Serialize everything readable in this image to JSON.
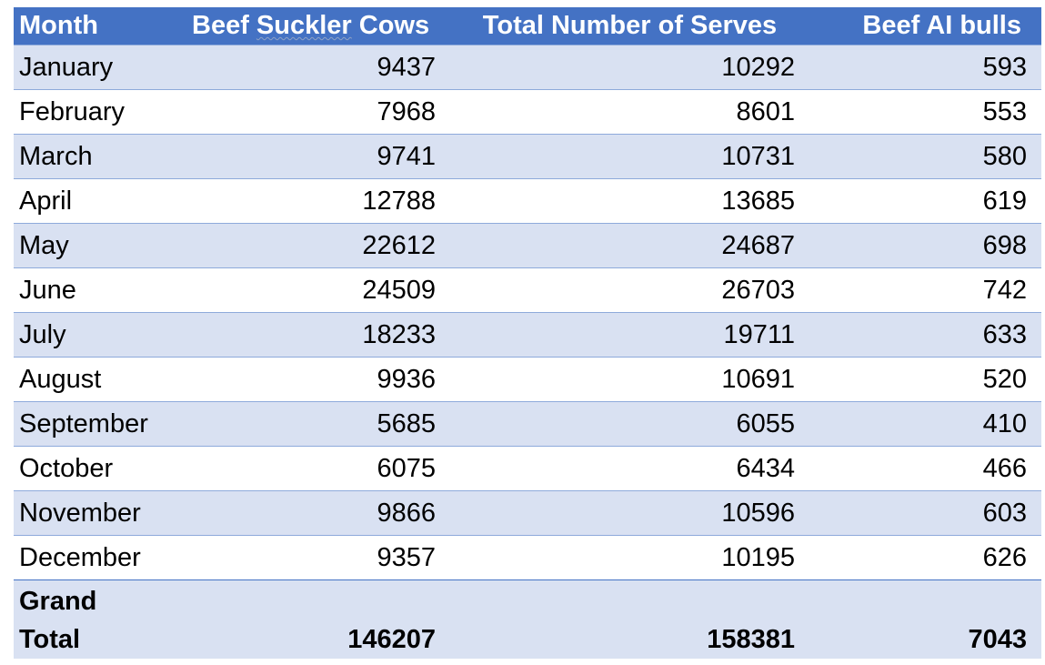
{
  "table": {
    "headers": {
      "month": "Month",
      "cows_word1": "Beef",
      "cows_word2": "Suckler",
      "cows_word3": "Cows",
      "serves": "Total Number of Serves",
      "bulls": "Beef AI bulls"
    },
    "rows": [
      {
        "month": "January",
        "cows": "9437",
        "serves": "10292",
        "bulls": "593"
      },
      {
        "month": "February",
        "cows": "7968",
        "serves": "8601",
        "bulls": "553"
      },
      {
        "month": "March",
        "cows": "9741",
        "serves": "10731",
        "bulls": "580"
      },
      {
        "month": "April",
        "cows": "12788",
        "serves": "13685",
        "bulls": "619"
      },
      {
        "month": "May",
        "cows": "22612",
        "serves": "24687",
        "bulls": "698"
      },
      {
        "month": "June",
        "cows": "24509",
        "serves": "26703",
        "bulls": "742"
      },
      {
        "month": "July",
        "cows": "18233",
        "serves": "19711",
        "bulls": "633"
      },
      {
        "month": "August",
        "cows": "9936",
        "serves": "10691",
        "bulls": "520"
      },
      {
        "month": "September",
        "cows": "5685",
        "serves": "6055",
        "bulls": "410"
      },
      {
        "month": "October",
        "cows": "6075",
        "serves": "6434",
        "bulls": "466"
      },
      {
        "month": "November",
        "cows": "9866",
        "serves": "10596",
        "bulls": "603"
      },
      {
        "month": "December",
        "cows": "9357",
        "serves": "10195",
        "bulls": "626"
      }
    ],
    "total": {
      "label": "Grand Total",
      "cows": "146207",
      "serves": "158381",
      "bulls": "7043"
    },
    "colors": {
      "header_bg": "#4472c4",
      "header_text": "#ffffff",
      "band_bg": "#d9e1f2",
      "row_border": "#8eaadb"
    }
  }
}
